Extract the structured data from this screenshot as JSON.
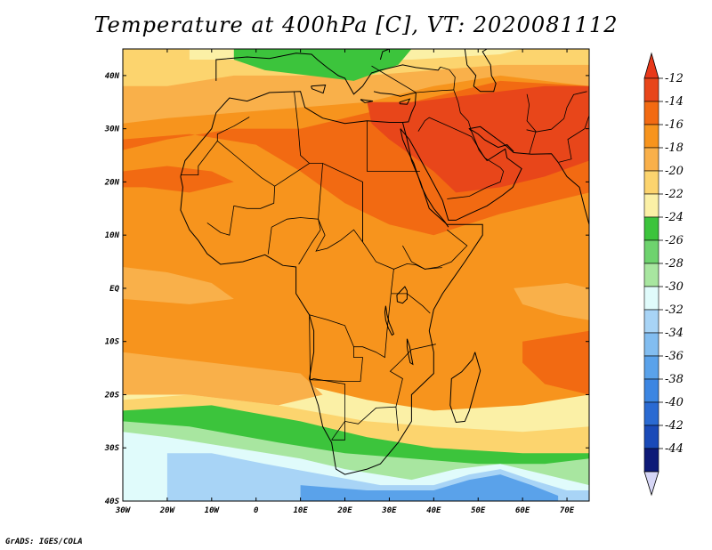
{
  "title": "Temperature at 400hPa [C], VT: 2020081112",
  "footer": "GrADS: IGES/COLA",
  "x_ticks": [
    "30W",
    "20W",
    "10W",
    "0",
    "10E",
    "20E",
    "30E",
    "40E",
    "50E",
    "60E",
    "70E"
  ],
  "y_ticks": [
    "40N",
    "30N",
    "20N",
    "10N",
    "EQ",
    "10S",
    "20S",
    "30S",
    "40S"
  ],
  "colorbar": {
    "labels": [
      "-12",
      "-14",
      "-16",
      "-18",
      "-20",
      "-22",
      "-24",
      "-26",
      "-28",
      "-30",
      "-32",
      "-34",
      "-36",
      "-38",
      "-40",
      "-42",
      "-44"
    ],
    "colors": [
      "#e8461a",
      "#f26a12",
      "#f7941d",
      "#f9b04a",
      "#fcd46e",
      "#fbf0a6",
      "#3cc43c",
      "#6ed36e",
      "#a8e6a0",
      "#e0fbfb",
      "#a8d4f6",
      "#82bdf0",
      "#5aa2ea",
      "#3c86e2",
      "#2a6ad2",
      "#1a4ab8",
      "#0e1a78"
    ],
    "top_arrow_color": "#e8381a",
    "bottom_arrow_color": "#d6d6f6"
  },
  "map": {
    "lon_range": [
      -30,
      75
    ],
    "lat_range": [
      -40,
      45
    ],
    "field_colors": {
      "warmest": "#e8461a",
      "warm": "#f26a12",
      "mid": "#f7941d",
      "mild": "#f9b04a",
      "light": "#fcd46e",
      "pale": "#fbf0a6",
      "green": "#3cc43c",
      "lightgreen": "#a8e6a0",
      "ice": "#e0fbfb",
      "lightblue": "#a8d4f6",
      "blue": "#5aa2ea"
    }
  }
}
